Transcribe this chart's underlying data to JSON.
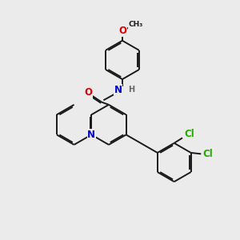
{
  "background_color": "#ebebeb",
  "bond_color": "#1a1a1a",
  "bond_width": 1.4,
  "dbo": 0.055,
  "atom_colors": {
    "O": "#dd0000",
    "N": "#0000cc",
    "Cl": "#22aa00",
    "H": "#666666"
  },
  "fs": 8.5
}
